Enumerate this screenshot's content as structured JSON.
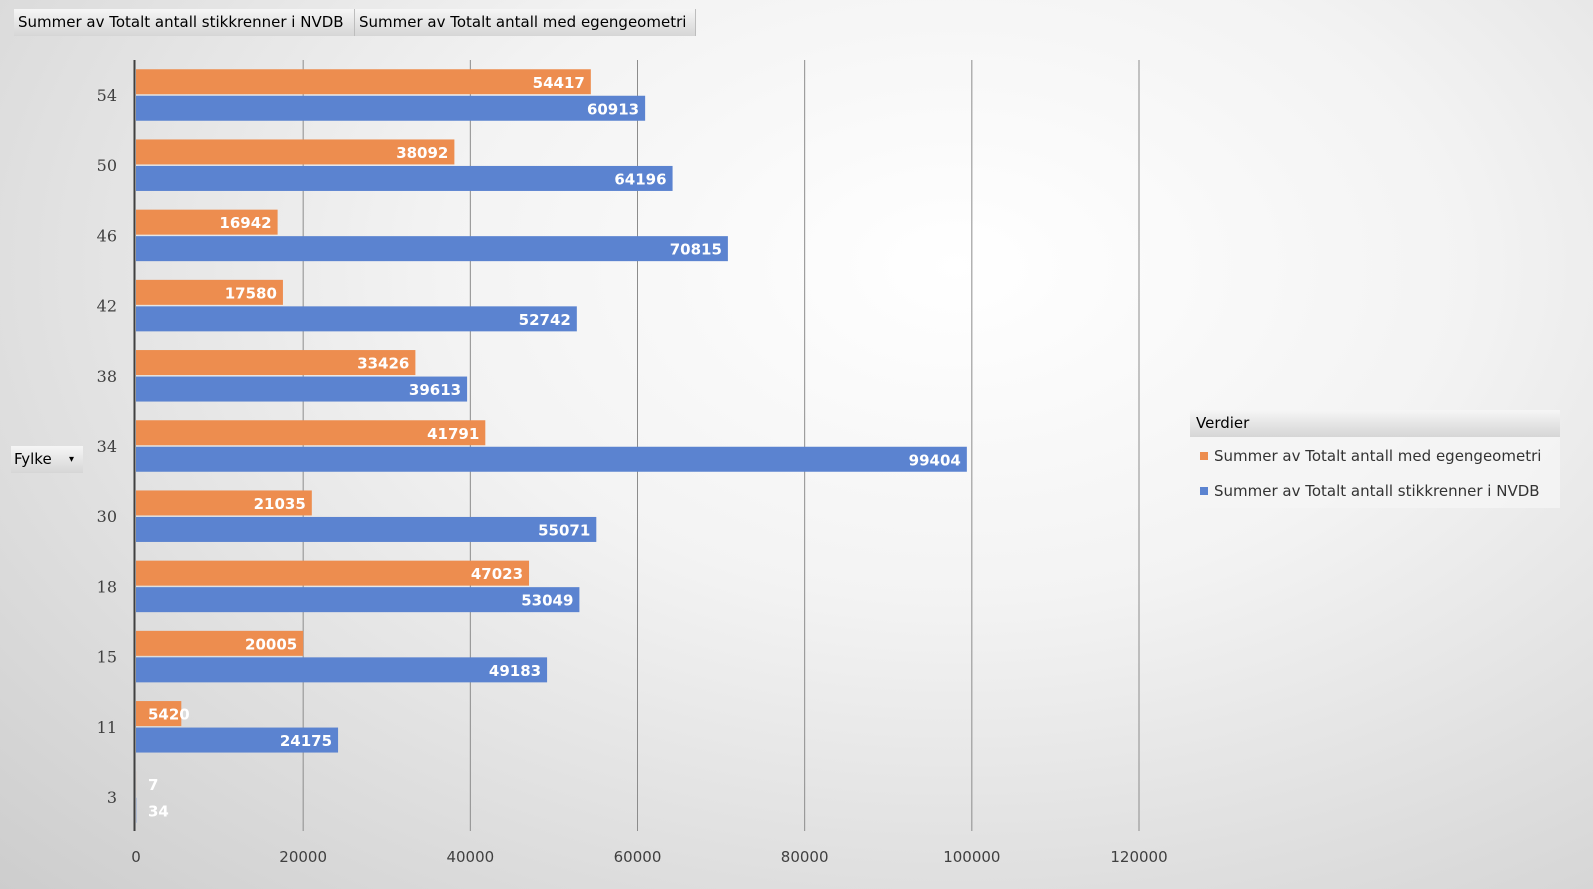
{
  "field_buttons": {
    "value1": "Summer av Totalt antall stikkrenner i NVDB",
    "value2": "Summer av Totalt antall med egengeometri"
  },
  "axis_field": {
    "label": "Fylke",
    "caret": "▾"
  },
  "legend": {
    "title": "Verdier",
    "items": [
      "Summer av Totalt antall med egengeometri",
      "Summer av Totalt antall stikkrenner i NVDB"
    ]
  },
  "colors": {
    "orange": "#ED8D4F",
    "blue": "#5B83D0",
    "gridline": "#8c8c8c",
    "axis": "#404040"
  },
  "chart_data": {
    "type": "bar",
    "orientation": "horizontal",
    "xlim": [
      0,
      120000
    ],
    "xticks": [
      0,
      20000,
      40000,
      60000,
      80000,
      100000,
      120000
    ],
    "grid": true,
    "legend_position": "right",
    "categories": [
      "54",
      "50",
      "46",
      "42",
      "38",
      "34",
      "30",
      "18",
      "15",
      "11",
      "3"
    ],
    "series": [
      {
        "name": "Summer av Totalt antall med egengeometri",
        "color": "#ED8D4F",
        "values": [
          54417,
          38092,
          16942,
          17580,
          33426,
          41791,
          21035,
          47023,
          20005,
          5420,
          7
        ]
      },
      {
        "name": "Summer av Totalt antall stikkrenner i NVDB",
        "color": "#5B83D0",
        "values": [
          60913,
          64196,
          70815,
          52742,
          39613,
          99404,
          55071,
          53049,
          49183,
          24175,
          34
        ]
      }
    ]
  }
}
